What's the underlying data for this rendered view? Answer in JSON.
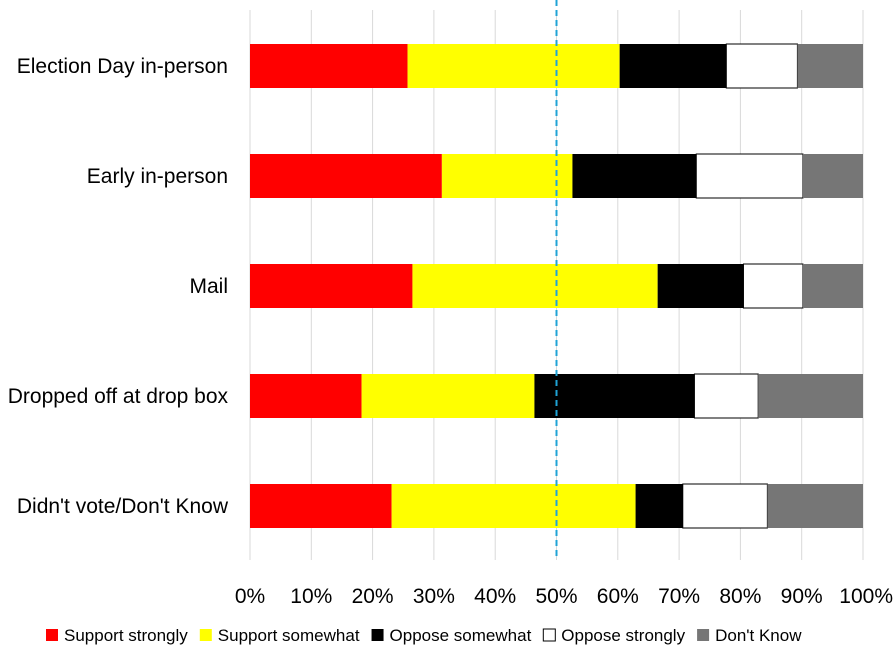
{
  "chart_data": {
    "type": "bar",
    "orientation": "horizontal",
    "stacked": "percent",
    "title": "",
    "xlabel": "",
    "ylabel": "",
    "xlim": [
      0,
      100
    ],
    "x_tick_labels": [
      "0%",
      "10%",
      "20%",
      "30%",
      "40%",
      "50%",
      "60%",
      "70%",
      "80%",
      "90%",
      "100%"
    ],
    "reference_line": {
      "value": 50,
      "style": "dashed",
      "color": "#1FA3D6"
    },
    "grid": "vertical",
    "legend_position": "bottom",
    "categories": [
      "Election Day in-person",
      "Early in-person",
      "Mail",
      "Dropped off at drop box",
      "Didn't vote/Don't Know"
    ],
    "series": [
      {
        "name": "Support strongly",
        "color": "#FF0000",
        "values": [
          25.7,
          31.3,
          26.5,
          18.2,
          23.1
        ]
      },
      {
        "name": "Support somewhat",
        "color": "#FFFF00",
        "values": [
          34.6,
          21.3,
          40.0,
          28.2,
          39.8
        ]
      },
      {
        "name": "Oppose somewhat",
        "color": "#000000",
        "values": [
          17.4,
          20.2,
          14.0,
          26.1,
          7.7
        ]
      },
      {
        "name": "Oppose strongly",
        "color": "#FFFFFF",
        "values": [
          11.6,
          17.4,
          9.7,
          10.4,
          13.8
        ]
      },
      {
        "name": "Don't Know",
        "color": "#767676",
        "values": [
          10.7,
          9.8,
          9.8,
          17.1,
          15.6
        ]
      }
    ]
  }
}
